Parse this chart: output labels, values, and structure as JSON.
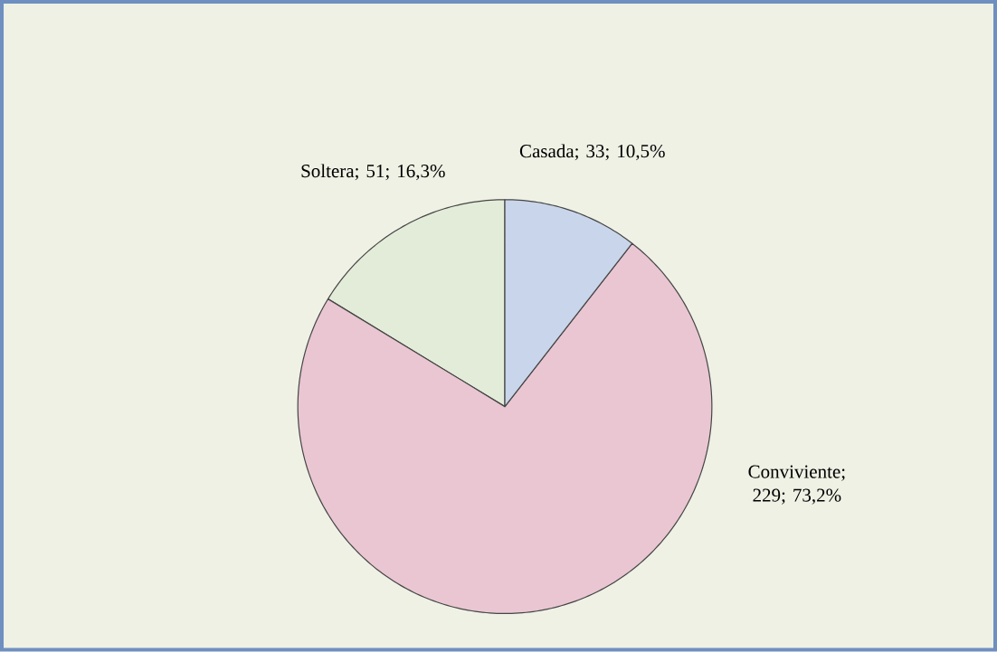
{
  "chart_data": {
    "type": "pie",
    "categories": [
      "Casada",
      "Conviviente",
      "Soltera"
    ],
    "values": [
      33,
      229,
      51
    ],
    "colors": [
      "#c9d5ea",
      "#e9c6d2",
      "#e3ecd9"
    ],
    "value_labels": [
      "; 33; 10,5%",
      "; 229; 73,2%",
      "; 51; 16,3%"
    ]
  }
}
